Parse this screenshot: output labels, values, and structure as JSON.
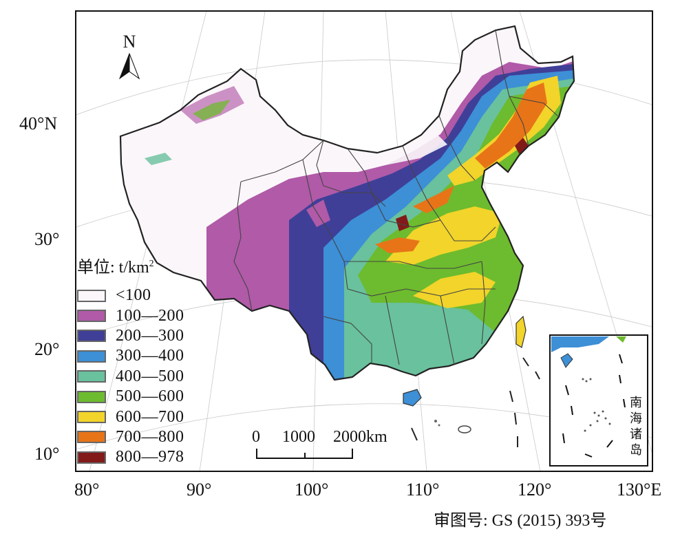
{
  "lat_labels": [
    "40°N",
    "30°",
    "20°",
    "10°"
  ],
  "lon_labels": [
    "80°",
    "90°",
    "100°",
    "110°",
    "120°",
    "130°E"
  ],
  "north_arrow": {
    "letter": "N",
    "icon": "north-arrow-icon"
  },
  "legend": {
    "title_prefix": "单位: t/km",
    "title_sup": "2",
    "items": [
      {
        "label": "<100",
        "color": "#fbf6fa"
      },
      {
        "label": "100—200",
        "color": "#b05aa8"
      },
      {
        "label": "200—300",
        "color": "#3f3f98"
      },
      {
        "label": "300—400",
        "color": "#3d8fd6"
      },
      {
        "label": "400—500",
        "color": "#69c19d"
      },
      {
        "label": "500—600",
        "color": "#6dbb2e"
      },
      {
        "label": "600—700",
        "color": "#f2d42a"
      },
      {
        "label": "700—800",
        "color": "#e87418"
      },
      {
        "label": "800—978",
        "color": "#821a1a"
      }
    ]
  },
  "scale_bar": {
    "ticks": [
      "0",
      "1000",
      "2000km"
    ]
  },
  "inset": {
    "label": "南海诸岛"
  },
  "review_number": "审图号: GS (2015) 393号"
}
